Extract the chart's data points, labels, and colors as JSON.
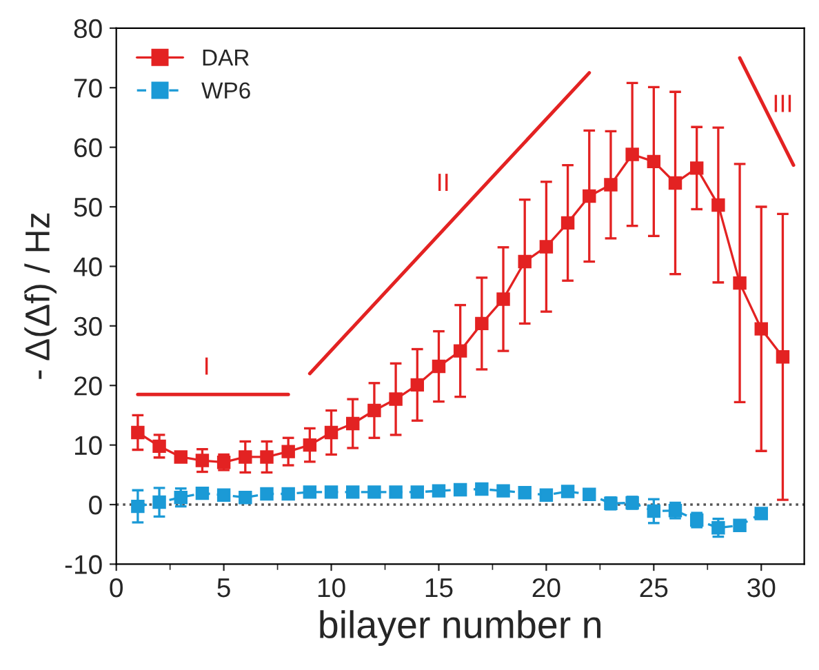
{
  "chart_data": {
    "type": "line",
    "xlabel": "bilayer number n",
    "ylabel": "- Δ(Δf) / Hz",
    "x": [
      1,
      2,
      3,
      4,
      5,
      6,
      7,
      8,
      9,
      10,
      11,
      12,
      13,
      14,
      15,
      16,
      17,
      18,
      19,
      20,
      21,
      22,
      23,
      24,
      25,
      26,
      27,
      28,
      29,
      30,
      31
    ],
    "series": [
      {
        "name": "DAR",
        "color": "#e32222",
        "line_style": "solid",
        "values": [
          12.1,
          9.8,
          8.0,
          7.4,
          7.1,
          8.0,
          8.0,
          8.9,
          10.0,
          12.1,
          13.6,
          15.8,
          17.7,
          20.1,
          23.2,
          25.8,
          30.4,
          34.5,
          40.8,
          43.3,
          47.3,
          51.8,
          53.7,
          58.8,
          57.6,
          54.0,
          56.5,
          50.3,
          37.2,
          29.5,
          24.8
        ],
        "errors": [
          2.9,
          1.9,
          null,
          1.9,
          1.3,
          2.6,
          2.6,
          2.3,
          2.8,
          3.7,
          4.1,
          4.6,
          6.0,
          6.0,
          5.9,
          7.7,
          7.7,
          8.7,
          10.4,
          10.9,
          9.7,
          11.0,
          9.0,
          12.0,
          12.5,
          15.3,
          6.9,
          13.0,
          20.0,
          20.5,
          24.0
        ]
      },
      {
        "name": "WP6",
        "color": "#1b9ad6",
        "line_style": "dashed",
        "x": [
          1,
          2,
          3,
          4,
          5,
          6,
          7,
          8,
          9,
          10,
          11,
          12,
          13,
          14,
          15,
          16,
          17,
          18,
          19,
          20,
          21,
          22,
          23,
          24,
          25,
          26,
          27,
          28,
          29,
          30
        ],
        "values": [
          -0.3,
          0.4,
          1.2,
          1.9,
          1.6,
          1.2,
          1.8,
          1.8,
          2.1,
          2.1,
          2.1,
          2.1,
          2.1,
          2.1,
          2.3,
          2.5,
          2.6,
          2.3,
          2.0,
          1.6,
          2.2,
          1.7,
          0.2,
          0.3,
          -1.1,
          -1.0,
          -2.6,
          -3.9,
          -3.5,
          -1.5
        ],
        "errors": [
          2.7,
          2.4,
          1.5,
          null,
          null,
          null,
          null,
          null,
          null,
          null,
          null,
          null,
          null,
          null,
          null,
          null,
          null,
          null,
          null,
          null,
          null,
          null,
          1.0,
          1.0,
          2.0,
          1.3,
          1.2,
          1.5,
          null,
          null
        ]
      },
      {
        "type": "line",
        "color": "#e32222",
        "line_style": "solid",
        "marker": "none",
        "x": [
          1,
          8
        ],
        "values": [
          18.5,
          18.5
        ]
      },
      {
        "type": "line",
        "color": "#e32222",
        "line_style": "solid",
        "marker": "none",
        "x": [
          9,
          22
        ],
        "values": [
          22,
          72.5
        ]
      },
      {
        "type": "line",
        "color": "#e32222",
        "line_style": "solid",
        "marker": "none",
        "x": [
          29,
          31.5
        ],
        "values": [
          75,
          57
        ]
      }
    ],
    "marker": "square",
    "xlim": [
      0,
      32
    ],
    "xticks": [
      0,
      5,
      10,
      15,
      20,
      25,
      30
    ],
    "ylim": [
      -10,
      80
    ],
    "yticks": [
      -10,
      0,
      10,
      20,
      30,
      40,
      50,
      60,
      70,
      80
    ],
    "ref_lines": [
      {
        "axis": "y",
        "value": 0,
        "color": "#555555",
        "line_style": "dotted"
      }
    ],
    "annotations": [
      "I",
      "II",
      "III"
    ],
    "grid": false,
    "legend": "top left"
  }
}
